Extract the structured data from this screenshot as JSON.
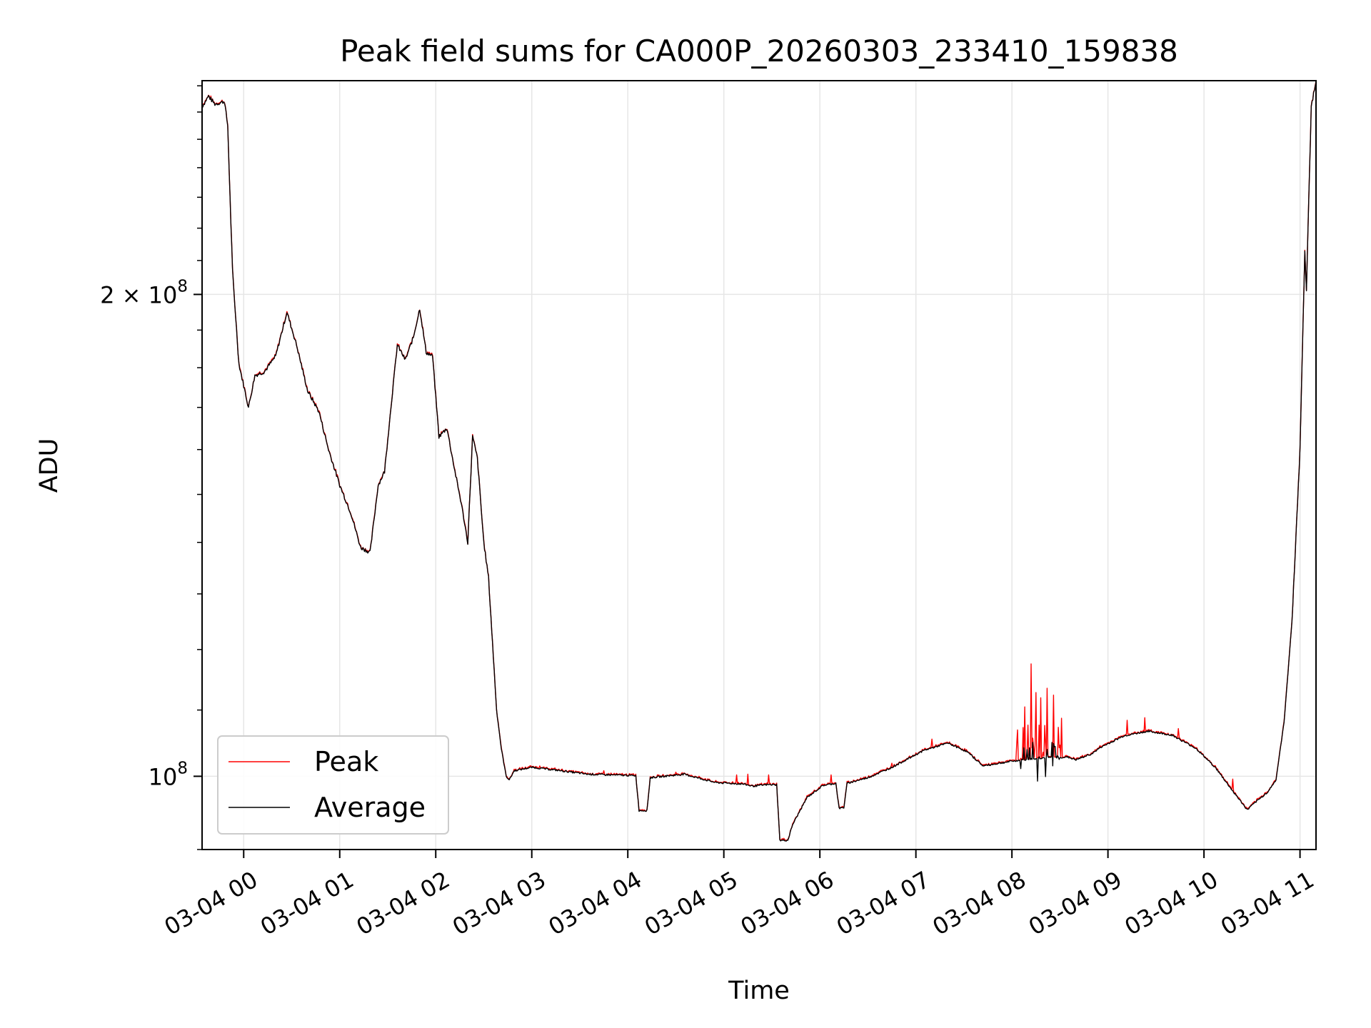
{
  "chart_data": {
    "type": "line",
    "title": "Peak field sums for CA000P_20260303_233410_159838",
    "xlabel": "Time",
    "ylabel": "ADU",
    "y_scale": "log",
    "grid": true,
    "legend_position": "lower-left",
    "x_range": [
      "03-03 23:34",
      "03-04 11:10"
    ],
    "y_range": [
      90000000,
      272000000
    ],
    "x_ticks": [
      "03-04 00",
      "03-04 01",
      "03-04 02",
      "03-04 03",
      "03-04 04",
      "03-04 05",
      "03-04 06",
      "03-04 07",
      "03-04 08",
      "03-04 09",
      "03-04 10",
      "03-04 11"
    ],
    "y_tick_values": [
      100000000,
      200000000
    ],
    "y_tick_labels": [
      {
        "base": "10",
        "exp": "8"
      },
      {
        "base": "2 × 10",
        "exp": "8"
      }
    ],
    "series": [
      {
        "name": "Peak",
        "color": "#ff0000"
      },
      {
        "name": "Average",
        "color": "#000000"
      }
    ],
    "average_profile": [
      [
        "03-03 23:34",
        262000000
      ],
      [
        "03-03 23:38",
        266000000
      ],
      [
        "03-03 23:42",
        263000000
      ],
      [
        "03-03 23:48",
        264000000
      ],
      [
        "03-03 23:50",
        255000000
      ],
      [
        "03-03 23:53",
        207000000
      ],
      [
        "03-03 23:57",
        181000000
      ],
      [
        "03-04 00:03",
        170000000
      ],
      [
        "03-04 00:07",
        178000000
      ],
      [
        "03-04 00:13",
        179000000
      ],
      [
        "03-04 00:20",
        183000000
      ],
      [
        "03-04 00:27",
        195000000
      ],
      [
        "03-04 00:33",
        186000000
      ],
      [
        "03-04 00:40",
        174000000
      ],
      [
        "03-04 00:47",
        169000000
      ],
      [
        "03-04 00:53",
        160000000
      ],
      [
        "03-04 01:00",
        152000000
      ],
      [
        "03-04 01:07",
        146000000
      ],
      [
        "03-04 01:13",
        139000000
      ],
      [
        "03-04 01:19",
        138000000
      ],
      [
        "03-04 01:24",
        152000000
      ],
      [
        "03-04 01:28",
        155000000
      ],
      [
        "03-04 01:32",
        170000000
      ],
      [
        "03-04 01:36",
        186000000
      ],
      [
        "03-04 01:41",
        182000000
      ],
      [
        "03-04 01:46",
        188000000
      ],
      [
        "03-04 01:50",
        196000000
      ],
      [
        "03-04 01:54",
        184000000
      ],
      [
        "03-04 01:58",
        183000000
      ],
      [
        "03-04 02:02",
        163000000
      ],
      [
        "03-04 02:07",
        165000000
      ],
      [
        "03-04 02:12",
        155000000
      ],
      [
        "03-04 02:16",
        148000000
      ],
      [
        "03-04 02:20",
        140000000
      ],
      [
        "03-04 02:23",
        163000000
      ],
      [
        "03-04 02:26",
        158000000
      ],
      [
        "03-04 02:30",
        140000000
      ],
      [
        "03-04 02:33",
        133000000
      ],
      [
        "03-04 02:38",
        110000000
      ],
      [
        "03-04 02:41",
        104000000
      ],
      [
        "03-04 02:44",
        100000000
      ],
      [
        "03-04 02:46",
        99500000
      ],
      [
        "03-04 02:49",
        100800000
      ],
      [
        "03-04 03:00",
        101300000
      ],
      [
        "03-04 03:15",
        100900000
      ],
      [
        "03-04 03:35",
        100300000
      ],
      [
        "03-04 04:05",
        100100000
      ],
      [
        "03-04 04:07",
        95200000
      ],
      [
        "03-04 04:12",
        95200000
      ],
      [
        "03-04 04:14",
        99800000
      ],
      [
        "03-04 04:35",
        100300000
      ],
      [
        "03-04 04:55",
        99100000
      ],
      [
        "03-04 05:12",
        98900000
      ],
      [
        "03-04 05:18",
        98600000
      ],
      [
        "03-04 05:27",
        98800000
      ],
      [
        "03-04 05:33",
        98800000
      ],
      [
        "03-04 05:35",
        91200000
      ],
      [
        "03-04 05:40",
        91200000
      ],
      [
        "03-04 05:43",
        93300000
      ],
      [
        "03-04 05:52",
        97000000
      ],
      [
        "03-04 06:02",
        98700000
      ],
      [
        "03-04 06:10",
        99000000
      ],
      [
        "03-04 06:12",
        95500000
      ],
      [
        "03-04 06:15",
        95600000
      ],
      [
        "03-04 06:17",
        99000000
      ],
      [
        "03-04 06:30",
        99800000
      ],
      [
        "03-04 06:45",
        101300000
      ],
      [
        "03-04 07:05",
        103800000
      ],
      [
        "03-04 07:20",
        104900000
      ],
      [
        "03-04 07:32",
        103600000
      ],
      [
        "03-04 07:42",
        101500000
      ],
      [
        "03-04 08:00",
        102200000
      ],
      [
        "03-04 08:20",
        102700000
      ],
      [
        "03-04 08:35",
        102800000
      ],
      [
        "03-04 08:40",
        102400000
      ],
      [
        "03-04 08:50",
        103300000
      ],
      [
        "03-04 08:55",
        104200000
      ],
      [
        "03-04 09:10",
        106000000
      ],
      [
        "03-04 09:25",
        106700000
      ],
      [
        "03-04 09:40",
        106100000
      ],
      [
        "03-04 09:55",
        104100000
      ],
      [
        "03-04 10:07",
        101300000
      ],
      [
        "03-04 10:18",
        97900000
      ],
      [
        "03-04 10:27",
        95300000
      ],
      [
        "03-04 10:32",
        96300000
      ],
      [
        "03-04 10:40",
        97800000
      ],
      [
        "03-04 10:45",
        99500000
      ],
      [
        "03-04 10:50",
        108000000
      ],
      [
        "03-04 10:55",
        125000000
      ],
      [
        "03-04 11:00",
        160000000
      ],
      [
        "03-04 11:03",
        213000000
      ],
      [
        "03-04 11:04",
        201000000
      ],
      [
        "03-04 11:07",
        262000000
      ],
      [
        "03-04 11:10",
        272000000
      ]
    ],
    "peak_spikes": [
      [
        "03-04 03:05",
        101500000
      ],
      [
        "03-04 03:45",
        100800000
      ],
      [
        "03-04 04:30",
        100600000
      ],
      [
        "03-04 05:08",
        100200000
      ],
      [
        "03-04 05:15",
        100300000
      ],
      [
        "03-04 05:28",
        100200000
      ],
      [
        "03-04 06:07",
        100200000
      ],
      [
        "03-04 06:45",
        101900000
      ],
      [
        "03-04 07:10",
        105500000
      ],
      [
        "03-04 08:03",
        104500000
      ],
      [
        "03-04 08:08",
        110500000
      ],
      [
        "03-04 08:12",
        114700000
      ],
      [
        "03-04 08:15",
        112800000
      ],
      [
        "03-04 08:18",
        110300000
      ],
      [
        "03-04 08:22",
        113500000
      ],
      [
        "03-04 08:26",
        109000000
      ],
      [
        "03-04 08:29",
        107300000
      ],
      [
        "03-04 08:31",
        108600000
      ],
      [
        "03-04 09:12",
        108400000
      ],
      [
        "03-04 09:23",
        108800000
      ],
      [
        "03-04 09:44",
        107100000
      ],
      [
        "03-04 10:18",
        99600000
      ]
    ],
    "average_dips": [
      [
        "03-04 08:16",
        99300000
      ],
      [
        "03-04 08:21",
        99800000
      ]
    ]
  }
}
